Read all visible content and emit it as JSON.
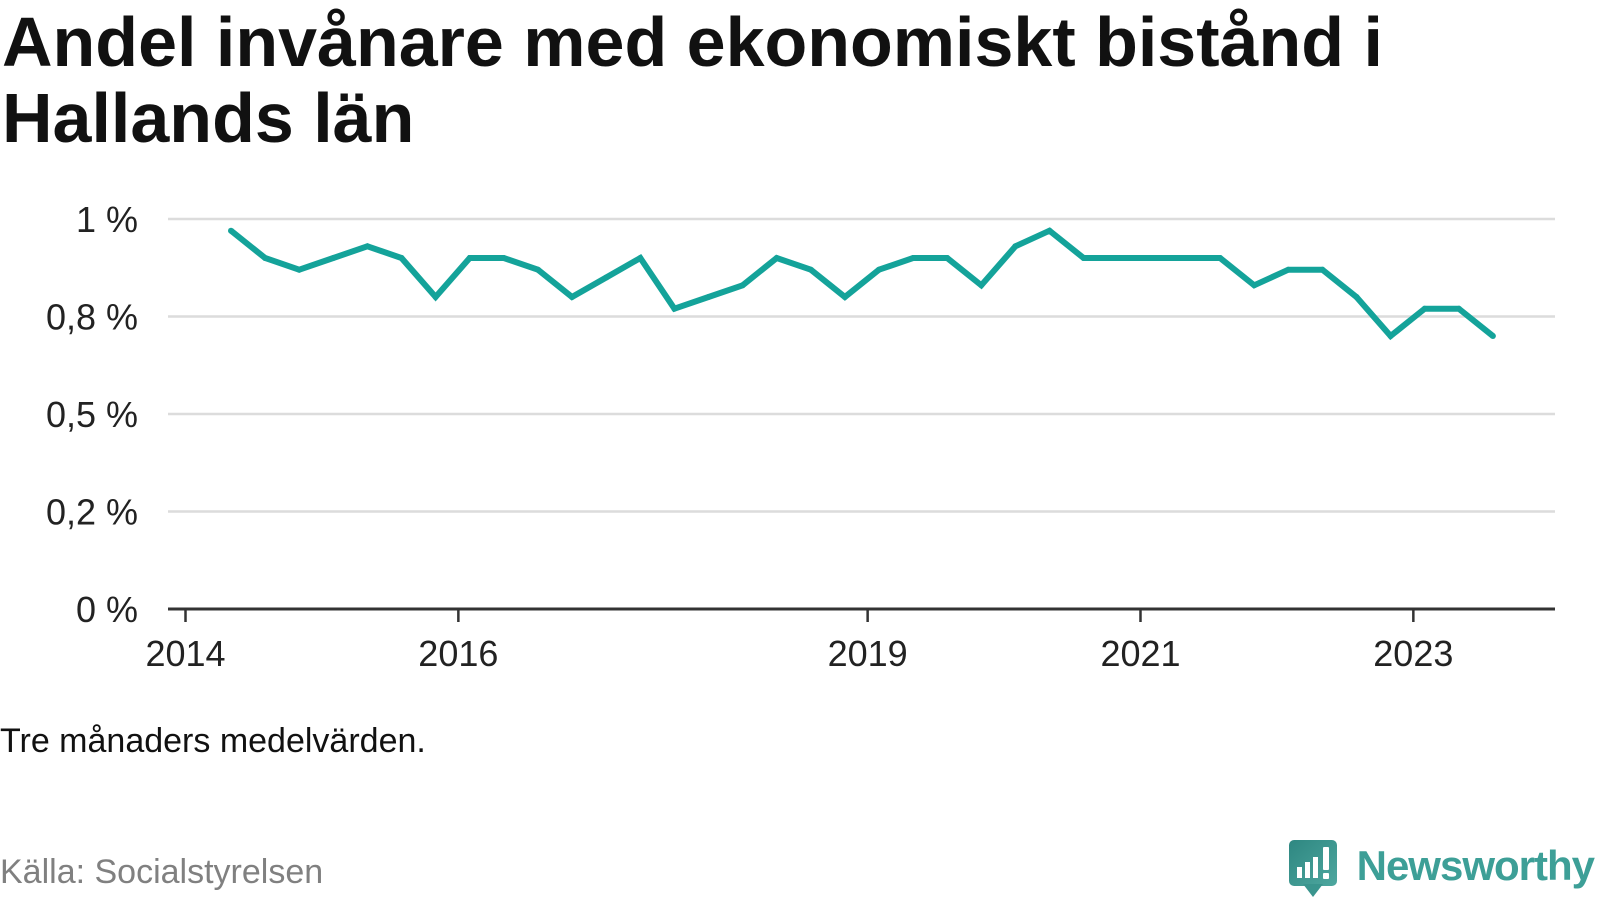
{
  "colors": {
    "line": "#14a39a",
    "grid": "#dcdcdc",
    "axis": "#333333",
    "text": "#111111",
    "muted": "#808080"
  },
  "brand": {
    "name": "Newsworthy",
    "icon": "newsworthy-logo-icon",
    "color": "#3d9f97"
  },
  "chart_data": {
    "type": "line",
    "title": "Andel invånare med ekonomiskt bistånd i Hallands län",
    "note": "Tre månaders medelvärden.",
    "source": "Källa: Socialstyrelsen",
    "x": [
      "2014-05",
      "2014-08",
      "2014-11",
      "2015-02",
      "2015-05",
      "2015-08",
      "2015-11",
      "2016-02",
      "2016-05",
      "2016-08",
      "2016-11",
      "2017-02",
      "2017-05",
      "2017-08",
      "2017-11",
      "2018-02",
      "2018-05",
      "2018-08",
      "2018-11",
      "2019-02",
      "2019-05",
      "2019-08",
      "2019-11",
      "2020-02",
      "2020-05",
      "2020-08",
      "2020-11",
      "2021-02",
      "2021-05",
      "2021-08",
      "2021-11",
      "2022-02",
      "2022-05",
      "2022-08",
      "2022-11",
      "2023-02",
      "2023-05",
      "2023-08"
    ],
    "series": [
      {
        "values": [
          0.97,
          0.9,
          0.87,
          0.9,
          0.93,
          0.9,
          0.8,
          0.9,
          0.9,
          0.87,
          0.8,
          0.85,
          0.9,
          0.77,
          0.8,
          0.83,
          0.9,
          0.87,
          0.8,
          0.87,
          0.9,
          0.9,
          0.83,
          0.93,
          0.97,
          0.9,
          0.9,
          0.9,
          0.9,
          0.9,
          0.83,
          0.87,
          0.87,
          0.8,
          0.7,
          0.77,
          0.77,
          0.7
        ]
      }
    ],
    "x_ticks": [
      "2014",
      "2016",
      "2019",
      "2021",
      "2023"
    ],
    "y_ticks": [
      {
        "value": 0,
        "label": "0 %"
      },
      {
        "value": 0.25,
        "label": "0,2 %"
      },
      {
        "value": 0.5,
        "label": "0,5 %"
      },
      {
        "value": 0.75,
        "label": "0,8 %"
      },
      {
        "value": 1,
        "label": "1 %"
      }
    ],
    "xlim": [
      "2013-11-15",
      "2024-01-15"
    ],
    "ylim": [
      0,
      1
    ],
    "grid": true
  }
}
